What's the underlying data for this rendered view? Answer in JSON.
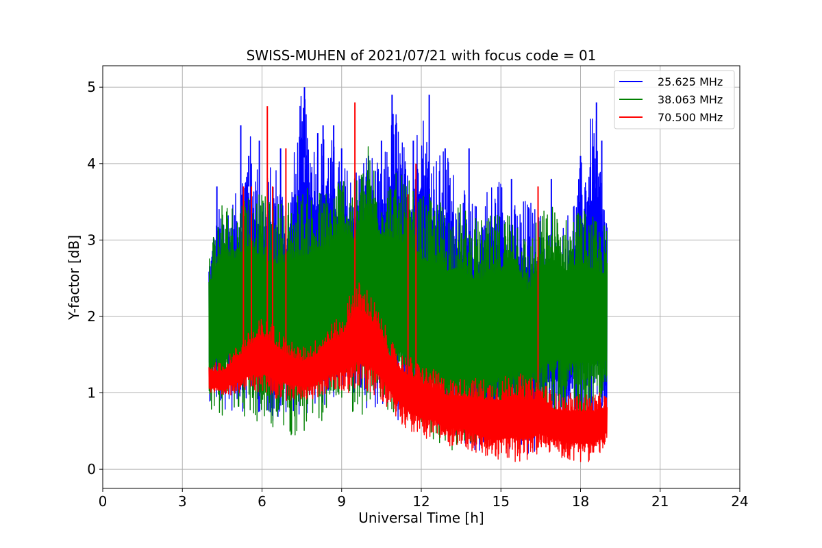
{
  "chart_data": {
    "type": "line",
    "title": "SWISS-MUHEN of 2021/07/21 with focus code = 01",
    "xlabel": "Universal Time [h]",
    "ylabel": "Y-factor [dB]",
    "xlim": [
      0,
      24
    ],
    "ylim": [
      -0.25,
      5.28
    ],
    "xticks": [
      0,
      3,
      6,
      9,
      12,
      15,
      18,
      21,
      24
    ],
    "yticks": [
      0,
      1,
      2,
      3,
      4,
      5
    ],
    "grid": true,
    "legend_position": "top-right",
    "series": [
      {
        "name": "25.625 MHz",
        "color": "#0000ff",
        "x": [
          4.0,
          4.5,
          5.0,
          5.5,
          6.0,
          6.5,
          7.0,
          7.5,
          8.0,
          8.5,
          9.0,
          9.5,
          10.0,
          10.5,
          11.0,
          11.5,
          12.0,
          12.5,
          13.0,
          13.5,
          14.0,
          14.5,
          15.0,
          15.5,
          16.0,
          16.5,
          17.0,
          17.5,
          18.0,
          18.5,
          19.0
        ],
        "upper": [
          2.9,
          3.6,
          3.6,
          4.5,
          3.8,
          4.1,
          3.6,
          5.0,
          4.4,
          4.5,
          4.0,
          4.0,
          4.3,
          3.9,
          4.9,
          4.0,
          4.9,
          4.2,
          4.2,
          3.7,
          3.5,
          3.8,
          3.9,
          3.5,
          3.6,
          3.4,
          3.1,
          3.4,
          4.0,
          4.8,
          3.5
        ],
        "lower": [
          0.9,
          0.7,
          0.7,
          0.8,
          0.7,
          0.6,
          0.6,
          0.7,
          0.7,
          0.8,
          1.0,
          0.8,
          0.8,
          0.8,
          0.6,
          0.5,
          0.5,
          0.4,
          0.3,
          0.3,
          0.2,
          0.2,
          0.2,
          0.2,
          0.0,
          0.3,
          0.5,
          0.3,
          0.5,
          0.4,
          0.4
        ]
      },
      {
        "name": "38.063 MHz",
        "color": "#008000",
        "x": [
          4.0,
          4.5,
          5.0,
          5.5,
          6.0,
          6.5,
          7.0,
          7.5,
          8.0,
          8.5,
          9.0,
          9.5,
          10.0,
          10.5,
          11.0,
          11.5,
          12.0,
          12.5,
          13.0,
          13.5,
          14.0,
          14.5,
          15.0,
          15.5,
          16.0,
          16.5,
          17.0,
          17.5,
          18.0,
          18.5,
          19.0
        ],
        "upper": [
          3.0,
          3.6,
          3.5,
          3.8,
          3.6,
          3.5,
          3.6,
          3.7,
          3.7,
          3.7,
          4.0,
          3.8,
          4.3,
          3.9,
          3.9,
          3.8,
          3.6,
          3.6,
          3.5,
          3.5,
          3.3,
          3.3,
          3.4,
          3.6,
          3.0,
          3.4,
          3.5,
          3.3,
          3.5,
          3.3,
          3.2
        ],
        "lower": [
          0.8,
          0.7,
          0.8,
          0.6,
          0.5,
          0.5,
          0.4,
          0.4,
          0.5,
          0.7,
          0.9,
          0.7,
          0.7,
          0.8,
          0.7,
          0.6,
          0.4,
          0.3,
          0.2,
          0.3,
          0.3,
          0.3,
          0.4,
          0.5,
          0.5,
          0.6,
          0.7,
          0.7,
          0.6,
          0.7,
          0.8
        ]
      },
      {
        "name": "70.500 MHz",
        "color": "#ff0000",
        "x": [
          4.0,
          4.5,
          5.0,
          5.5,
          6.0,
          6.5,
          7.0,
          7.5,
          8.0,
          8.5,
          9.0,
          9.5,
          10.0,
          10.5,
          11.0,
          11.5,
          12.0,
          12.5,
          13.0,
          13.5,
          14.0,
          14.5,
          15.0,
          15.5,
          16.0,
          16.5,
          17.0,
          17.5,
          18.0,
          18.5,
          19.0
        ],
        "upper": [
          1.4,
          1.4,
          1.6,
          1.8,
          2.0,
          1.9,
          1.7,
          1.6,
          1.7,
          1.9,
          2.0,
          2.5,
          2.4,
          2.0,
          1.6,
          1.5,
          1.4,
          1.3,
          1.2,
          1.2,
          1.2,
          1.2,
          1.2,
          1.3,
          1.2,
          1.2,
          1.0,
          1.0,
          1.0,
          1.0,
          1.0
        ],
        "lower": [
          1.0,
          0.9,
          1.0,
          1.0,
          1.0,
          0.9,
          0.9,
          0.9,
          0.9,
          1.0,
          1.0,
          1.0,
          1.0,
          0.9,
          0.7,
          0.5,
          0.4,
          0.4,
          0.3,
          0.3,
          0.2,
          0.1,
          0.1,
          0.1,
          0.1,
          0.2,
          0.2,
          0.1,
          0.1,
          0.1,
          0.3
        ],
        "spikes": [
          {
            "x": 5.3,
            "y": 3.7
          },
          {
            "x": 5.6,
            "y": 3.7
          },
          {
            "x": 6.2,
            "y": 4.75
          },
          {
            "x": 6.4,
            "y": 3.7
          },
          {
            "x": 6.9,
            "y": 4.2
          },
          {
            "x": 9.5,
            "y": 4.8
          },
          {
            "x": 11.5,
            "y": 3.6
          },
          {
            "x": 11.8,
            "y": 4.0
          },
          {
            "x": 16.4,
            "y": 3.7
          }
        ]
      }
    ],
    "peaks_25": [
      {
        "x": 4.3,
        "y": 3.7
      },
      {
        "x": 5.2,
        "y": 4.5
      },
      {
        "x": 5.5,
        "y": 4.1
      },
      {
        "x": 5.9,
        "y": 4.3
      },
      {
        "x": 6.7,
        "y": 4.2
      },
      {
        "x": 7.6,
        "y": 5.0
      },
      {
        "x": 8.1,
        "y": 4.4
      },
      {
        "x": 8.3,
        "y": 4.5
      },
      {
        "x": 8.7,
        "y": 4.5
      },
      {
        "x": 9.0,
        "y": 4.2
      },
      {
        "x": 10.5,
        "y": 4.3
      },
      {
        "x": 10.9,
        "y": 4.9
      },
      {
        "x": 11.7,
        "y": 4.3
      },
      {
        "x": 12.3,
        "y": 4.9
      },
      {
        "x": 12.9,
        "y": 4.2
      },
      {
        "x": 13.8,
        "y": 4.2
      },
      {
        "x": 15.4,
        "y": 3.8
      },
      {
        "x": 16.9,
        "y": 3.8
      },
      {
        "x": 18.0,
        "y": 4.1
      },
      {
        "x": 18.6,
        "y": 4.8
      },
      {
        "x": 18.8,
        "y": 4.3
      }
    ]
  }
}
